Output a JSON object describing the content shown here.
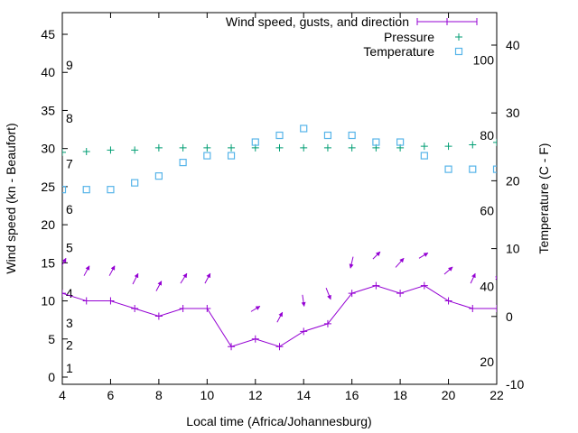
{
  "chart_data": {
    "type": "line",
    "xlabel": "Local time (Africa/Johannesburg)",
    "ylabel": "Wind speed (kn - Beaufort)",
    "y2label": "Temperature (C - F)",
    "xlim": [
      4,
      22
    ],
    "ylim": [
      -1,
      48
    ],
    "y2lim": [
      -10,
      45
    ],
    "grid": false,
    "legend_position": "top-right",
    "x_ticks": [
      "4",
      "6",
      "8",
      "10",
      "12",
      "14",
      "16",
      "18",
      "20",
      "22"
    ],
    "y_ticks": [
      "0",
      "5",
      "10",
      "15",
      "20",
      "25",
      "30",
      "35",
      "40",
      "45"
    ],
    "y2_ticks": [
      "-10",
      "0",
      "10",
      "20",
      "30",
      "40"
    ],
    "beaufort_labels": [
      {
        "label": "1",
        "kn": 1.2
      },
      {
        "label": "2",
        "kn": 4.2
      },
      {
        "label": "3",
        "kn": 7.1
      },
      {
        "label": "4",
        "kn": 11
      },
      {
        "label": "5",
        "kn": 17
      },
      {
        "label": "6",
        "kn": 22
      },
      {
        "label": "7",
        "kn": 28
      },
      {
        "label": "8",
        "kn": 34
      },
      {
        "label": "9",
        "kn": 41
      }
    ],
    "fahrenheit_labels": [
      {
        "label": "20",
        "c": -6.7
      },
      {
        "label": "40",
        "c": 4.4
      },
      {
        "label": "60",
        "c": 15.6
      },
      {
        "label": "80",
        "c": 26.7
      },
      {
        "label": "100",
        "c": 37.8
      }
    ],
    "x": [
      4,
      5,
      6,
      7,
      8,
      9,
      10,
      11,
      12,
      13,
      14,
      15,
      16,
      17,
      18,
      19,
      20,
      21,
      22
    ],
    "series": [
      {
        "name": "Wind speed, gusts, and direction",
        "color": "#9400d3",
        "axis": "y",
        "values": [
          11,
          10,
          10,
          9,
          8,
          9,
          9,
          4,
          5,
          4,
          6,
          7,
          11,
          12,
          11,
          12,
          10,
          9,
          9
        ]
      },
      {
        "name": "Pressure",
        "color": "#009e73",
        "axis": "y",
        "values": [
          29.5,
          29.6,
          29.8,
          29.8,
          30.1,
          30.1,
          30.1,
          30.1,
          30.1,
          30.1,
          30.1,
          30.1,
          30.1,
          30.1,
          30.1,
          30.3,
          30.3,
          30.5,
          30.8
        ]
      },
      {
        "name": "Temperature",
        "color": "#56b4e9",
        "axis": "y2",
        "values": [
          18.7,
          18.7,
          18.7,
          19.7,
          20.7,
          22.7,
          23.7,
          23.7,
          25.7,
          26.7,
          27.7,
          26.7,
          26.7,
          25.7,
          25.7,
          23.7,
          21.7,
          21.7,
          21.7
        ]
      }
    ],
    "wind_arrows": [
      {
        "x": 3.93,
        "y": 14.3,
        "dx": 0.22,
        "dy": 1.3
      },
      {
        "x": 4.9,
        "y": 13.3,
        "dx": 0.22,
        "dy": 1.3
      },
      {
        "x": 5.95,
        "y": 13.3,
        "dx": 0.22,
        "dy": 1.3
      },
      {
        "x": 6.92,
        "y": 12.2,
        "dx": 0.22,
        "dy": 1.4
      },
      {
        "x": 7.89,
        "y": 11.3,
        "dx": 0.22,
        "dy": 1.3
      },
      {
        "x": 8.9,
        "y": 12.3,
        "dx": 0.26,
        "dy": 1.3
      },
      {
        "x": 9.91,
        "y": 12.3,
        "dx": 0.22,
        "dy": 1.3
      },
      {
        "x": 11.82,
        "y": 8.6,
        "dx": 0.37,
        "dy": 0.7
      },
      {
        "x": 12.9,
        "y": 7.2,
        "dx": 0.22,
        "dy": 1.3
      },
      {
        "x": 13.95,
        "y": 10.8,
        "dx": 0.07,
        "dy": -1.5
      },
      {
        "x": 14.93,
        "y": 11.7,
        "dx": 0.19,
        "dy": -1.5
      },
      {
        "x": 16.05,
        "y": 15.8,
        "dx": -0.11,
        "dy": -1.5
      },
      {
        "x": 16.87,
        "y": 15.5,
        "dx": 0.3,
        "dy": 0.95
      },
      {
        "x": 17.81,
        "y": 14.4,
        "dx": 0.34,
        "dy": 1.2
      },
      {
        "x": 18.78,
        "y": 15.6,
        "dx": 0.37,
        "dy": 0.7
      },
      {
        "x": 19.83,
        "y": 13.5,
        "dx": 0.34,
        "dy": 0.95
      },
      {
        "x": 20.92,
        "y": 12.3,
        "dx": 0.19,
        "dy": 1.3
      },
      {
        "x": 21.96,
        "y": 12.8,
        "dx": 0.15,
        "dy": 0.6
      }
    ]
  }
}
